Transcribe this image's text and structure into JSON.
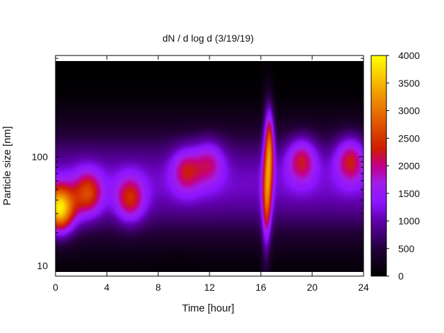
{
  "chart_data": {
    "type": "heatmap",
    "title": "dN / d log d (3/19/19)",
    "xlabel": "Time [hour]",
    "ylabel": "Particle size [nm]",
    "xlim": [
      0,
      24
    ],
    "ylim": [
      8,
      850
    ],
    "y_scale": "log",
    "x_ticks": [
      0,
      4,
      8,
      12,
      16,
      20,
      24
    ],
    "x_tick_labels": [
      "0",
      "4",
      "8",
      "12",
      "16",
      "20",
      "24"
    ],
    "y_ticks": [
      10,
      100
    ],
    "y_tick_labels": [
      "10",
      "100"
    ],
    "colorbar": {
      "min": 0,
      "max": 4000,
      "ticks": [
        0,
        500,
        1000,
        1500,
        2000,
        2500,
        3000,
        3500,
        4000
      ],
      "tick_labels": [
        "0",
        "500",
        "1000",
        "1500",
        "2000",
        "2500",
        "3000",
        "3500",
        "4000"
      ],
      "colormap": "black-purple-red-orange-yellow"
    },
    "base_level": 1100,
    "events": [
      {
        "time": 0.3,
        "size_nm": 32,
        "peak": 3900
      },
      {
        "time": 2.5,
        "size_nm": 45,
        "peak": 2450
      },
      {
        "time": 5.8,
        "size_nm": 40,
        "peak": 2300
      },
      {
        "time": 10.2,
        "size_nm": 75,
        "peak": 2050
      },
      {
        "time": 12.0,
        "size_nm": 90,
        "peak": 1900
      },
      {
        "time": 16.7,
        "size_nm": 130,
        "peak": 2900
      },
      {
        "time": 16.5,
        "size_nm": 40,
        "peak": 2200
      },
      {
        "time": 19.2,
        "size_nm": 95,
        "peak": 2200
      },
      {
        "time": 23.0,
        "size_nm": 95,
        "peak": 2250
      }
    ]
  }
}
